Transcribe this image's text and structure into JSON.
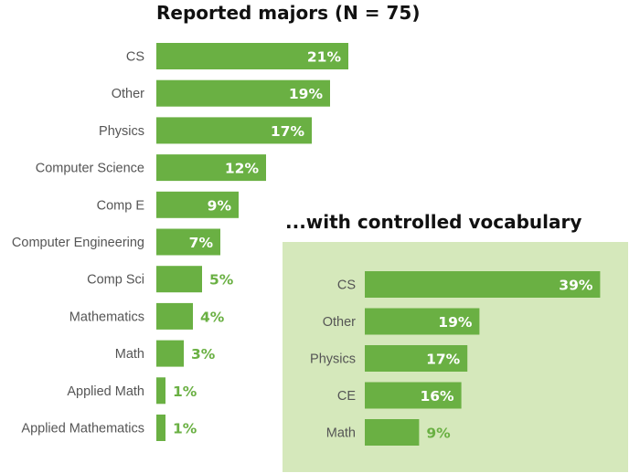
{
  "colors": {
    "bar": "#6ab043",
    "label_inside": "#ffffff",
    "label_outside": "#6ab043",
    "inset_background": "#d5e8bb",
    "category_text": "#555555"
  },
  "chart_data": [
    {
      "type": "bar",
      "orientation": "horizontal",
      "title": "Reported majors (N = 75)",
      "categories": [
        "CS",
        "Other",
        "Physics",
        "Computer Science",
        "Comp E",
        "Computer Engineering",
        "Comp Sci",
        "Mathematics",
        "Math",
        "Applied Math",
        "Applied Mathematics"
      ],
      "values": [
        21,
        19,
        17,
        12,
        9,
        7,
        5,
        4,
        3,
        1,
        1
      ],
      "value_labels": [
        "21%",
        "19%",
        "17%",
        "12%",
        "9%",
        "7%",
        "5%",
        "4%",
        "3%",
        "1%",
        "1%"
      ],
      "unit": "%",
      "grid": false,
      "legend": "none"
    },
    {
      "type": "bar",
      "orientation": "horizontal",
      "title": "...with controlled vocabulary",
      "categories": [
        "CS",
        "Other",
        "Physics",
        "CE",
        "Math"
      ],
      "values": [
        39,
        19,
        17,
        16,
        9
      ],
      "value_labels": [
        "39%",
        "19%",
        "17%",
        "16%",
        "9%"
      ],
      "unit": "%",
      "grid": false,
      "legend": "none"
    }
  ]
}
